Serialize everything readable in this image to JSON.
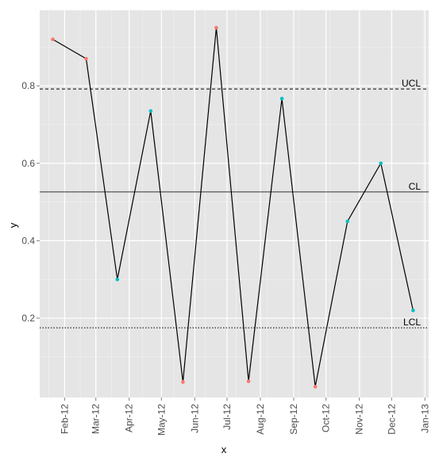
{
  "chart_data": {
    "type": "line",
    "title": "",
    "xlabel": "x",
    "ylabel": "y",
    "grid": true,
    "legend": "none",
    "colors": {
      "panel": "#e5e5e5",
      "gridMajor": "#ffffff",
      "gridMinor": "#f2f2f2",
      "line": "#000000",
      "outControl": "#f8766d",
      "inControl": "#00bfc4",
      "refLine": "#333333"
    },
    "x_ticks": [
      "Feb-12",
      "Mar-12",
      "Apr-12",
      "May-12",
      "Jun-12",
      "Jul-12",
      "Aug-12",
      "Sep-12",
      "Oct-12",
      "Nov-12",
      "Dec-12",
      "Jan-13"
    ],
    "y_ticks": [
      "0.2",
      "0.4",
      "0.6",
      "0.8"
    ],
    "ylim": [
      -0.005,
      0.995
    ],
    "series": [
      {
        "points": [
          {
            "x": "2012-01-21",
            "y": 0.92,
            "status": "out"
          },
          {
            "x": "2012-02-21",
            "y": 0.87,
            "status": "out"
          },
          {
            "x": "2012-03-21",
            "y": 0.3,
            "status": "in"
          },
          {
            "x": "2012-04-21",
            "y": 0.735,
            "status": "in"
          },
          {
            "x": "2012-05-21",
            "y": 0.035,
            "status": "out"
          },
          {
            "x": "2012-06-21",
            "y": 0.95,
            "status": "out"
          },
          {
            "x": "2012-07-21",
            "y": 0.037,
            "status": "out"
          },
          {
            "x": "2012-08-21",
            "y": 0.767,
            "status": "in"
          },
          {
            "x": "2012-09-21",
            "y": 0.023,
            "status": "out"
          },
          {
            "x": "2012-10-21",
            "y": 0.45,
            "status": "in"
          },
          {
            "x": "2012-11-21",
            "y": 0.6,
            "status": "in"
          },
          {
            "x": "2012-12-21",
            "y": 0.22,
            "status": "in"
          }
        ]
      }
    ],
    "reference_lines": [
      {
        "label": "UCL",
        "y": 0.792,
        "style": "dashed"
      },
      {
        "label": "CL",
        "y": 0.526,
        "style": "solid"
      },
      {
        "label": "LCL",
        "y": 0.175,
        "style": "dotted"
      }
    ]
  }
}
